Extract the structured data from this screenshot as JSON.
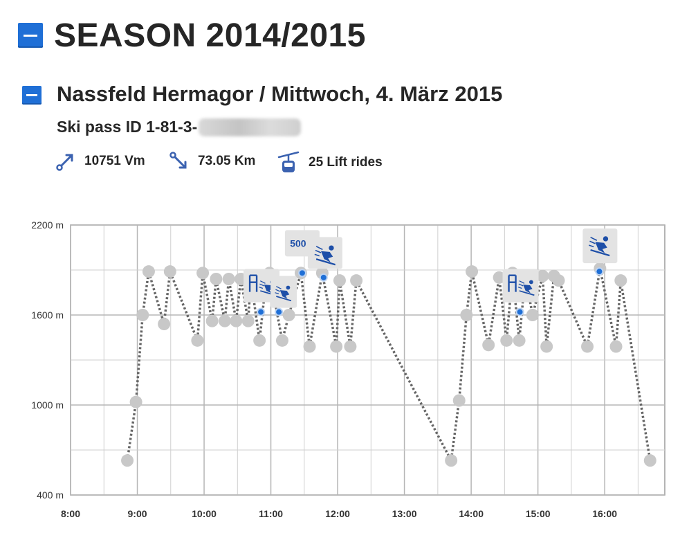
{
  "season": {
    "title": "SEASON 2014/2015"
  },
  "day": {
    "title": "Nassfeld Hermagor / Mittwoch, 4. März 2015",
    "pass_label": "Ski pass ID 1-81-3-"
  },
  "stats": {
    "vertical": "10751 Vm",
    "distance": "73.05 Km",
    "lifts": "25 Lift rides"
  },
  "colors": {
    "accent": "#1f6fd6",
    "marker": "#c8c8c8",
    "line": "#666666",
    "badge": "#e3e3e3"
  },
  "chart_data": {
    "type": "line",
    "title": "",
    "xlabel": "",
    "ylabel": "",
    "xlim": [
      8.0,
      16.9
    ],
    "ylim": [
      400,
      2200
    ],
    "x_ticks": [
      8,
      9,
      10,
      11,
      12,
      13,
      14,
      15,
      16
    ],
    "x_tick_labels": [
      "8:00",
      "9:00",
      "10:00",
      "11:00",
      "12:00",
      "13:00",
      "14:00",
      "15:00",
      "16:00"
    ],
    "y_ticks": [
      400,
      1000,
      1600,
      2200
    ],
    "y_tick_labels": [
      "400 m",
      "1000 m",
      "1600 m",
      "2200 m"
    ],
    "series": [
      {
        "name": "Altitude",
        "x": [
          8.85,
          8.98,
          9.08,
          9.17,
          9.4,
          9.49,
          9.9,
          9.98,
          10.12,
          10.18,
          10.31,
          10.37,
          10.48,
          10.55,
          10.66,
          10.7,
          10.83,
          10.93,
          10.98,
          11.17,
          11.27,
          11.45,
          11.58,
          11.77,
          11.98,
          12.03,
          12.19,
          12.28,
          13.7,
          13.82,
          13.93,
          14.01,
          14.26,
          14.42,
          14.53,
          14.62,
          14.72,
          14.81,
          14.92,
          15.07,
          15.13,
          15.24,
          15.31,
          15.74,
          15.93,
          16.17,
          16.24,
          16.68
        ],
        "y": [
          630,
          1020,
          1600,
          1890,
          1540,
          1890,
          1430,
          1880,
          1560,
          1840,
          1560,
          1840,
          1560,
          1840,
          1560,
          1840,
          1430,
          1840,
          1880,
          1430,
          1600,
          1880,
          1390,
          1880,
          1390,
          1830,
          1390,
          1830,
          630,
          1030,
          1600,
          1890,
          1400,
          1850,
          1430,
          1880,
          1430,
          1860,
          1600,
          1860,
          1390,
          1860,
          1830,
          1390,
          1910,
          1390,
          1830,
          630
        ]
      }
    ],
    "events": [
      {
        "type": "speed",
        "label": "500",
        "time": 11.47,
        "alt": 1880
      },
      {
        "type": "lift-ski",
        "time": 10.85,
        "alt": 1620
      },
      {
        "type": "ski",
        "time": 11.12,
        "alt": 1620
      },
      {
        "type": "ski",
        "time": 11.79,
        "alt": 1850
      },
      {
        "type": "lift-ski",
        "time": 14.73,
        "alt": 1620
      },
      {
        "type": "ski",
        "time": 15.92,
        "alt": 1890
      }
    ]
  }
}
